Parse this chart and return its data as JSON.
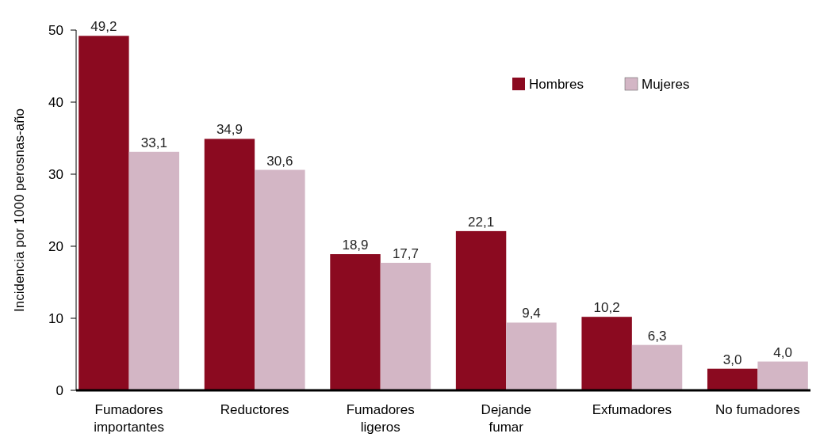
{
  "chart_data": {
    "type": "bar",
    "ylabel": "Incidencia por 1000 perosnas-año",
    "categories": [
      "Fumadores\nimportantes",
      "Reductores",
      "Fumadores\nligeros",
      "Dejande\nfumar",
      "Exfumadores",
      "No fumadores"
    ],
    "series": [
      {
        "name": "Hombres",
        "color": "#8b0a20",
        "values": [
          49.2,
          34.9,
          18.9,
          22.1,
          10.2,
          3.0
        ],
        "value_labels": [
          "49,2",
          "34,9",
          "18,9",
          "22,1",
          "10,2",
          "3,0"
        ]
      },
      {
        "name": "Mujeres",
        "color": "#d3b6c5",
        "values": [
          33.1,
          30.6,
          17.7,
          9.4,
          6.3,
          4.0
        ],
        "value_labels": [
          "33,1",
          "30,6",
          "17,7",
          "9,4",
          "6,3",
          "4,0"
        ]
      }
    ],
    "ylim": [
      0,
      50
    ],
    "yticks": [
      0,
      10,
      20,
      30,
      40,
      50
    ],
    "grid": false,
    "legend": "top right"
  }
}
